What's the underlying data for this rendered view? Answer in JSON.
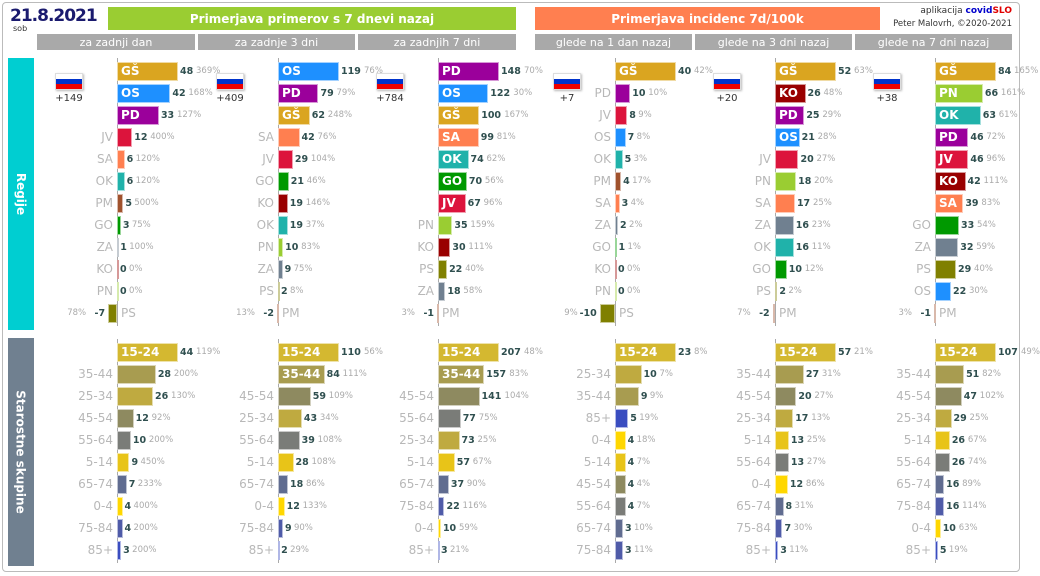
{
  "header": {
    "date": "21.8.2021",
    "day": "sob",
    "title_cases": "Primerjava primerov s 7 dnevi nazaj",
    "title_incidence": "Primerjava incidenc 7d/100k",
    "credit_app": "aplikacija",
    "credit_brand_a": "covid",
    "credit_brand_b": "SLO",
    "credit_author": "Peter Malovrh, ©2020-2021"
  },
  "side": {
    "regions": "Regije",
    "ages": "Starostne skupine"
  },
  "colors": {
    "GŠ": "#DAA520",
    "OS": "#1E90FF",
    "PD": "#9B009B",
    "JV": "#DC143C",
    "SA": "#FF7F50",
    "OK": "#20B2AA",
    "PM": "#A0522D",
    "GO": "#009900",
    "ZA": "#708090",
    "KO": "#990000",
    "PN": "#9ACD32",
    "PS": "#808000",
    "15-24": "#D4B830",
    "35-44": "#A89C50",
    "25-34": "#BFAA40",
    "45-54": "#8E8A60",
    "55-64": "#7A7C78",
    "5-14": "#E8C418",
    "65-74": "#606C90",
    "0-4": "#FFD700",
    "75-84": "#4F5BA8",
    "85+": "#3A4DC0"
  },
  "panels": [
    {
      "header": "za zadnji dan",
      "total": "+149",
      "regions": [
        [
          "GŠ",
          48,
          "369%"
        ],
        [
          "OS",
          42,
          "168%"
        ],
        [
          "PD",
          33,
          "127%"
        ],
        [
          "JV",
          12,
          "400%"
        ],
        [
          "SA",
          6,
          "120%"
        ],
        [
          "OK",
          6,
          "120%"
        ],
        [
          "PM",
          5,
          "500%"
        ],
        [
          "GO",
          3,
          "75%"
        ],
        [
          "ZA",
          1,
          "100%"
        ],
        [
          "KO",
          0,
          "0%"
        ],
        [
          "PN",
          0,
          "0%"
        ],
        [
          "PS",
          -7,
          "78%"
        ]
      ],
      "ages": [
        [
          "15-24",
          44,
          "119%"
        ],
        [
          "35-44",
          28,
          "200%"
        ],
        [
          "25-34",
          26,
          "130%"
        ],
        [
          "45-54",
          12,
          "92%"
        ],
        [
          "55-64",
          10,
          "200%"
        ],
        [
          "5-14",
          9,
          "450%"
        ],
        [
          "65-74",
          7,
          "233%"
        ],
        [
          "0-4",
          4,
          "400%"
        ],
        [
          "75-84",
          4,
          "200%"
        ],
        [
          "85+",
          3,
          "200%"
        ]
      ]
    },
    {
      "header": "za zadnje 3 dni",
      "total": "+409",
      "regions": [
        [
          "OS",
          119,
          "76%"
        ],
        [
          "PD",
          79,
          "79%"
        ],
        [
          "GŠ",
          62,
          "248%"
        ],
        [
          "SA",
          42,
          "76%"
        ],
        [
          "JV",
          29,
          "104%"
        ],
        [
          "GO",
          21,
          "46%"
        ],
        [
          "KO",
          19,
          "146%"
        ],
        [
          "OK",
          19,
          "37%"
        ],
        [
          "PN",
          10,
          "83%"
        ],
        [
          "ZA",
          9,
          "75%"
        ],
        [
          "PS",
          2,
          "8%"
        ],
        [
          "PM",
          -2,
          "13%"
        ]
      ],
      "ages": [
        [
          "15-24",
          110,
          "56%"
        ],
        [
          "35-44",
          84,
          "111%"
        ],
        [
          "45-54",
          59,
          "109%"
        ],
        [
          "25-34",
          43,
          "34%"
        ],
        [
          "55-64",
          39,
          "108%"
        ],
        [
          "5-14",
          28,
          "108%"
        ],
        [
          "65-74",
          18,
          "86%"
        ],
        [
          "0-4",
          12,
          "133%"
        ],
        [
          "75-84",
          9,
          "90%"
        ],
        [
          "85+",
          2,
          "29%"
        ]
      ]
    },
    {
      "header": "za zadnjih 7 dni",
      "total": "+784",
      "regions": [
        [
          "PD",
          148,
          "70%"
        ],
        [
          "OS",
          122,
          "30%"
        ],
        [
          "GŠ",
          100,
          "167%"
        ],
        [
          "SA",
          99,
          "81%"
        ],
        [
          "OK",
          74,
          "62%"
        ],
        [
          "GO",
          70,
          "56%"
        ],
        [
          "JV",
          67,
          "96%"
        ],
        [
          "PN",
          35,
          "159%"
        ],
        [
          "KO",
          30,
          "111%"
        ],
        [
          "PS",
          22,
          "40%"
        ],
        [
          "ZA",
          18,
          "58%"
        ],
        [
          "PM",
          -1,
          "3%"
        ]
      ],
      "ages": [
        [
          "15-24",
          207,
          "48%"
        ],
        [
          "35-44",
          157,
          "83%"
        ],
        [
          "45-54",
          141,
          "104%"
        ],
        [
          "55-64",
          77,
          "75%"
        ],
        [
          "25-34",
          73,
          "25%"
        ],
        [
          "5-14",
          57,
          "67%"
        ],
        [
          "65-74",
          37,
          "90%"
        ],
        [
          "75-84",
          22,
          "116%"
        ],
        [
          "0-4",
          10,
          "59%"
        ],
        [
          "85+",
          3,
          "21%"
        ]
      ]
    },
    {
      "header": "glede na 1 dan nazaj",
      "total": "+7",
      "regions": [
        [
          "GŠ",
          40,
          "42%"
        ],
        [
          "PD",
          10,
          "10%"
        ],
        [
          "JV",
          8,
          "9%"
        ],
        [
          "OS",
          7,
          "8%"
        ],
        [
          "OK",
          5,
          "3%"
        ],
        [
          "PM",
          4,
          "17%"
        ],
        [
          "SA",
          3,
          "4%"
        ],
        [
          "ZA",
          2,
          "2%"
        ],
        [
          "GO",
          1,
          "1%"
        ],
        [
          "KO",
          0,
          "0%"
        ],
        [
          "PN",
          0,
          "0%"
        ],
        [
          "PS",
          -10,
          "9%"
        ]
      ],
      "ages": [
        [
          "15-24",
          23,
          "8%"
        ],
        [
          "25-34",
          10,
          "7%"
        ],
        [
          "35-44",
          9,
          "9%"
        ],
        [
          "85+",
          5,
          "19%"
        ],
        [
          "0-4",
          4,
          "18%"
        ],
        [
          "5-14",
          4,
          "7%"
        ],
        [
          "45-54",
          4,
          "4%"
        ],
        [
          "55-64",
          4,
          "7%"
        ],
        [
          "65-74",
          3,
          "10%"
        ],
        [
          "75-84",
          3,
          "11%"
        ]
      ]
    },
    {
      "header": "glede na 3 dni nazaj",
      "total": "+20",
      "regions": [
        [
          "GŠ",
          52,
          "63%"
        ],
        [
          "KO",
          26,
          "48%"
        ],
        [
          "PD",
          25,
          "29%"
        ],
        [
          "OS",
          21,
          "28%"
        ],
        [
          "JV",
          20,
          "27%"
        ],
        [
          "PN",
          18,
          "20%"
        ],
        [
          "SA",
          17,
          "25%"
        ],
        [
          "ZA",
          16,
          "23%"
        ],
        [
          "OK",
          16,
          "11%"
        ],
        [
          "GO",
          10,
          "12%"
        ],
        [
          "PS",
          2,
          "2%"
        ],
        [
          "PM",
          -2,
          "7%"
        ]
      ],
      "ages": [
        [
          "15-24",
          57,
          "21%"
        ],
        [
          "35-44",
          27,
          "31%"
        ],
        [
          "45-54",
          20,
          "27%"
        ],
        [
          "25-34",
          17,
          "13%"
        ],
        [
          "5-14",
          13,
          "25%"
        ],
        [
          "55-64",
          13,
          "27%"
        ],
        [
          "0-4",
          12,
          "86%"
        ],
        [
          "65-74",
          8,
          "31%"
        ],
        [
          "75-84",
          7,
          "30%"
        ],
        [
          "85+",
          3,
          "11%"
        ]
      ]
    },
    {
      "header": "glede na 7 dni nazaj",
      "total": "+38",
      "regions": [
        [
          "GŠ",
          84,
          "165%"
        ],
        [
          "PN",
          66,
          "161%"
        ],
        [
          "OK",
          63,
          "61%"
        ],
        [
          "PD",
          46,
          "72%"
        ],
        [
          "JV",
          46,
          "96%"
        ],
        [
          "KO",
          42,
          "111%"
        ],
        [
          "SA",
          39,
          "83%"
        ],
        [
          "GO",
          33,
          "54%"
        ],
        [
          "ZA",
          32,
          "59%"
        ],
        [
          "PS",
          29,
          "40%"
        ],
        [
          "OS",
          22,
          "30%"
        ],
        [
          "PM",
          -1,
          "3%"
        ]
      ],
      "ages": [
        [
          "15-24",
          107,
          "49%"
        ],
        [
          "35-44",
          51,
          "82%"
        ],
        [
          "45-54",
          47,
          "102%"
        ],
        [
          "25-34",
          29,
          "25%"
        ],
        [
          "5-14",
          26,
          "67%"
        ],
        [
          "55-64",
          26,
          "74%"
        ],
        [
          "65-74",
          16,
          "89%"
        ],
        [
          "75-84",
          16,
          "114%"
        ],
        [
          "0-4",
          10,
          "63%"
        ],
        [
          "85+",
          5,
          "19%"
        ]
      ]
    }
  ]
}
